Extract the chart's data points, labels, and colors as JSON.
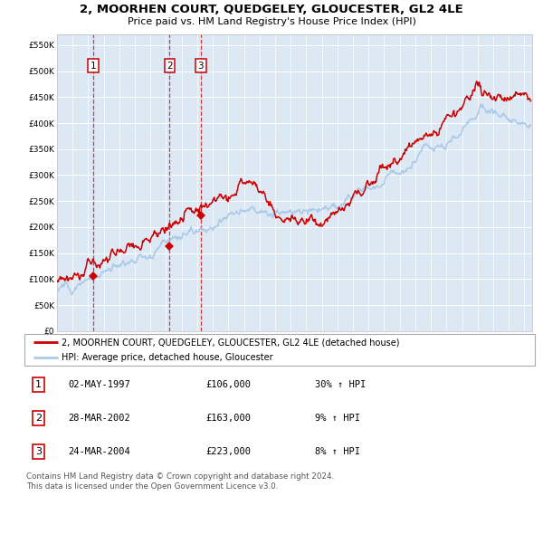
{
  "title": "2, MOORHEN COURT, QUEDGELEY, GLOUCESTER, GL2 4LE",
  "subtitle": "Price paid vs. HM Land Registry's House Price Index (HPI)",
  "background_color": "#f0f4f8",
  "plot_bg_color": "#dce9f5",
  "red_line_color": "#cc0000",
  "blue_line_color": "#aac8e8",
  "grid_color": "#ffffff",
  "ylim": [
    0,
    570000
  ],
  "yticks": [
    0,
    50000,
    100000,
    150000,
    200000,
    250000,
    300000,
    350000,
    400000,
    450000,
    500000,
    550000
  ],
  "xlim_start": 1995.0,
  "xlim_end": 2025.5,
  "sale_markers": [
    {
      "label": "1",
      "date_year": 1997.33,
      "price": 106000,
      "date_str": "02-MAY-1997",
      "price_str": "£106,000",
      "pct": "30%",
      "dir": "↑"
    },
    {
      "label": "2",
      "date_year": 2002.23,
      "price": 163000,
      "date_str": "28-MAR-2002",
      "price_str": "£163,000",
      "pct": "9%",
      "dir": "↑"
    },
    {
      "label": "3",
      "date_year": 2004.23,
      "price": 223000,
      "date_str": "24-MAR-2004",
      "price_str": "£223,000",
      "pct": "8%",
      "dir": "↑"
    }
  ],
  "legend_red_label": "2, MOORHEN COURT, QUEDGELEY, GLOUCESTER, GL2 4LE (detached house)",
  "legend_blue_label": "HPI: Average price, detached house, Gloucester",
  "footer_line1": "Contains HM Land Registry data © Crown copyright and database right 2024.",
  "footer_line2": "This data is licensed under the Open Government Licence v3.0."
}
